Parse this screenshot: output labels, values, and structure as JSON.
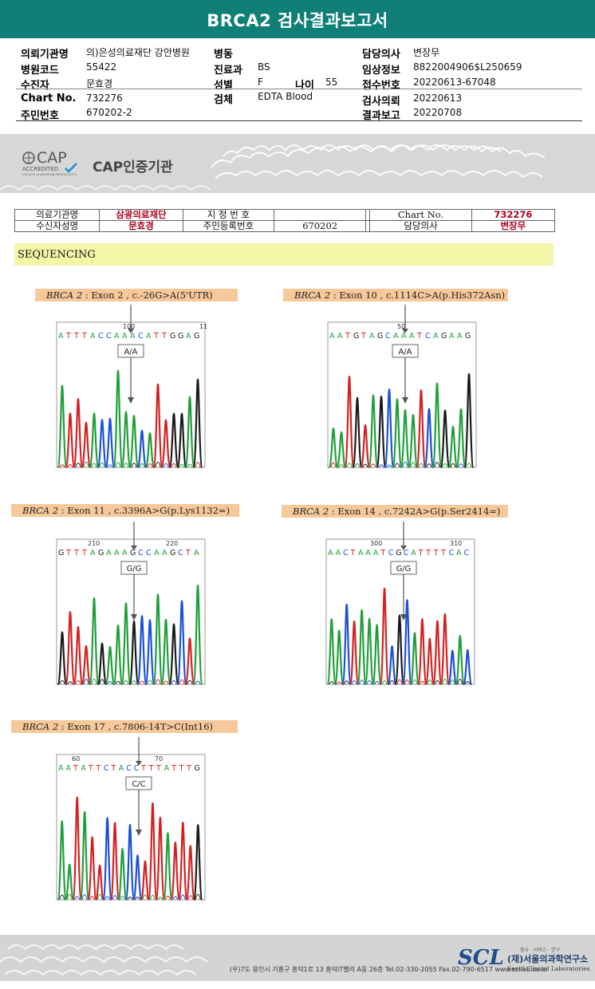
{
  "header": {
    "title": "BRCA2 검사결과보고서"
  },
  "info": {
    "col1": [
      {
        "label": "의뢰기관명",
        "value": "의)은성의료재단 강안병원"
      },
      {
        "label": "병원코드",
        "value": "55422"
      },
      {
        "label": "수진자",
        "value": "문효경"
      },
      {
        "label": "Chart No.",
        "value": "732276"
      },
      {
        "label": "주민번호",
        "value": "670202-2"
      }
    ],
    "col2": [
      {
        "label": "병동",
        "value": ""
      },
      {
        "label": "진료과",
        "value": "BS"
      },
      {
        "label": "성별",
        "value": "F"
      },
      {
        "label": "검체",
        "value": "EDTA Blood"
      }
    ],
    "age": {
      "label": "나이",
      "value": "55"
    },
    "col3": [
      {
        "label": "담당의사",
        "value": "변장무"
      },
      {
        "label": "임상정보",
        "value": "8822004906$L250659"
      },
      {
        "label": "접수번호",
        "value": "20220613-67048"
      },
      {
        "label": "검사의뢰",
        "value": "20220613"
      },
      {
        "label": "결과보고",
        "value": "20220708"
      }
    ]
  },
  "cap": {
    "logo_text": "CAP",
    "accredited": "ACCREDITED",
    "college": "COLLEGE of AMERICAN PATHOLOGISTS",
    "label": "CAP인증기관"
  },
  "table": {
    "r1": {
      "l1": "의료기관명",
      "v1": "삼광의료재단",
      "l2": "지 정 번 호",
      "v2": "",
      "l3": "Chart No.",
      "v3": "732276"
    },
    "r2": {
      "l1": "수신자성명",
      "v1": "문효경",
      "l2": "주민등록번호",
      "v2": "670202",
      "l3": "담당의사",
      "v3": "변장무"
    }
  },
  "sequencing": {
    "title": "SEQUENCING"
  },
  "variants": [
    {
      "gene": "BRCA 2",
      "desc": ": Exon 2 , c.-26G>A(5'UTR)",
      "bases": "ATTTACCAAACATTGGAG",
      "ticks": [
        "100",
        "11"
      ],
      "genotype": "A/A"
    },
    {
      "gene": "BRCA 2",
      "desc": ": Exon 10 , c.1114C>A(p.His372Asn)",
      "bases": "AATGTAGCAAATCAGAAG",
      "ticks": [
        "50"
      ],
      "genotype": "A/A"
    },
    {
      "gene": "BRCA 2",
      "desc": ": Exon 11 , c.3396A>G(p.Lys1132=)",
      "bases": "GTTTAGAAAGCCAAGCTA",
      "ticks": [
        "210",
        "220"
      ],
      "genotype": "G/G"
    },
    {
      "gene": "BRCA 2",
      "desc": ": Exon 14 , c.7242A>G(p.Ser2414=)",
      "bases": "AACTAAATCGCATTTTCAC",
      "ticks": [
        "300",
        "310"
      ],
      "genotype": "G/G"
    },
    {
      "gene": "BRCA 2",
      "desc": ": Exon 17 , c.7806-14T>C(Int16)",
      "bases": "AATATTCTACCTTTATTTG",
      "ticks": [
        "60",
        "70"
      ],
      "genotype": "C/C"
    }
  ],
  "footer": {
    "address": "(우)7도 용인시 기흥구 흥덕1로 13 흥덕IT밸리 A동 26층  Tel.02-330-2055  Fax.02-790-6517  www.scllab.co.kr",
    "logo": "SCL",
    "name": "(재)서울의과학연구소",
    "english": "Seoul Clinical Laboratories",
    "slogan": "봉사 · 서비스 · 연구"
  },
  "colors": {
    "header": "#0f7f78",
    "A": "#1f9e3a",
    "C": "#1a4fd8",
    "G": "#1a1a1a",
    "T": "#d42020",
    "variant_label": "#f7c99a",
    "seq_band": "#f4f7a8"
  }
}
